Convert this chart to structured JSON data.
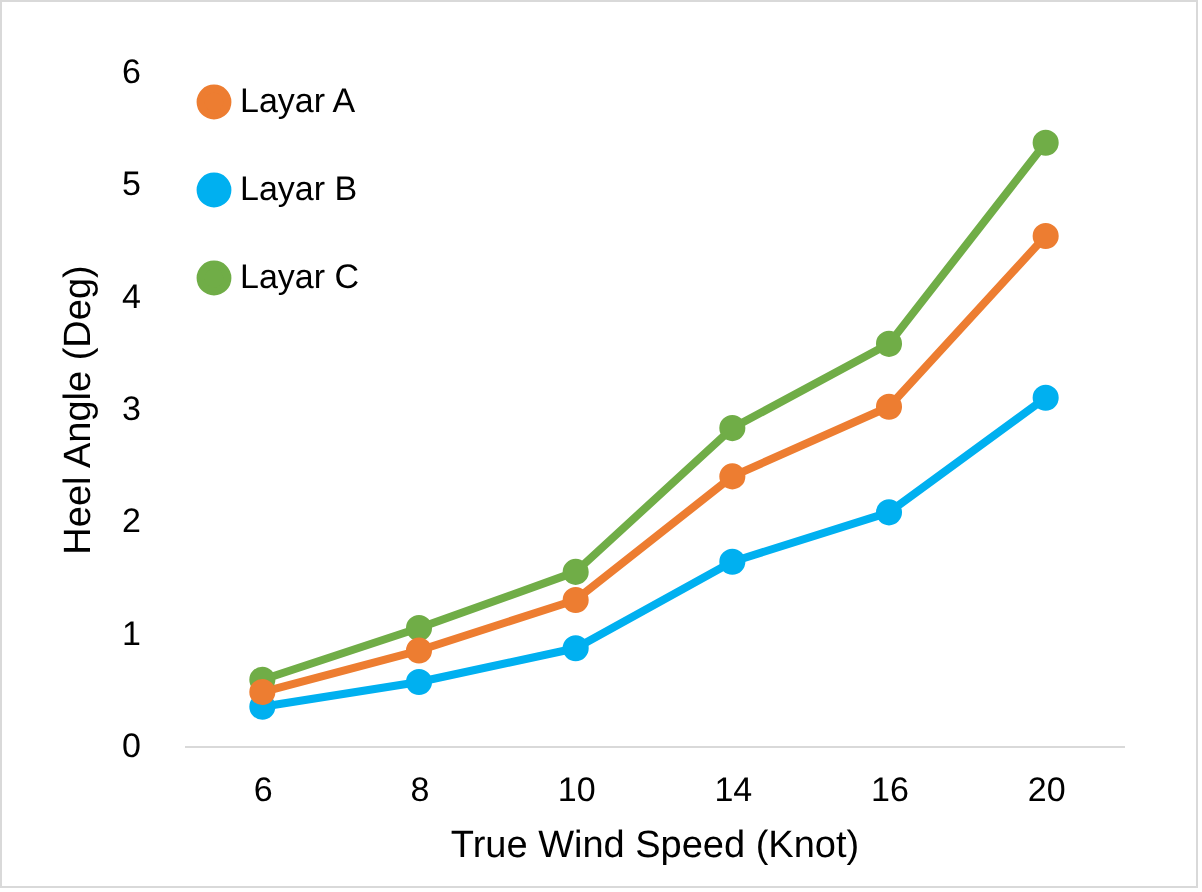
{
  "chart_data": {
    "type": "line",
    "xlabel": "True Wind Speed (Knot)",
    "ylabel": "Heel Angle (Deg)",
    "categories": [
      "6",
      "8",
      "10",
      "14",
      "16",
      "20"
    ],
    "series": [
      {
        "name": "Layar A",
        "color": "#ed7d31",
        "values": [
          0.48,
          0.85,
          1.3,
          2.4,
          3.02,
          4.54
        ]
      },
      {
        "name": "Layar B",
        "color": "#00b0f0",
        "values": [
          0.35,
          0.57,
          0.87,
          1.64,
          2.08,
          3.1
        ]
      },
      {
        "name": "Layar C",
        "color": "#70ad47",
        "values": [
          0.59,
          1.05,
          1.55,
          2.83,
          3.58,
          5.37
        ]
      }
    ],
    "ylim": [
      0,
      6
    ],
    "yticks": [
      0,
      1,
      2,
      3,
      4,
      5,
      6
    ],
    "grid": false,
    "legend": "top left",
    "marker": "circle",
    "line_style": "solid"
  }
}
